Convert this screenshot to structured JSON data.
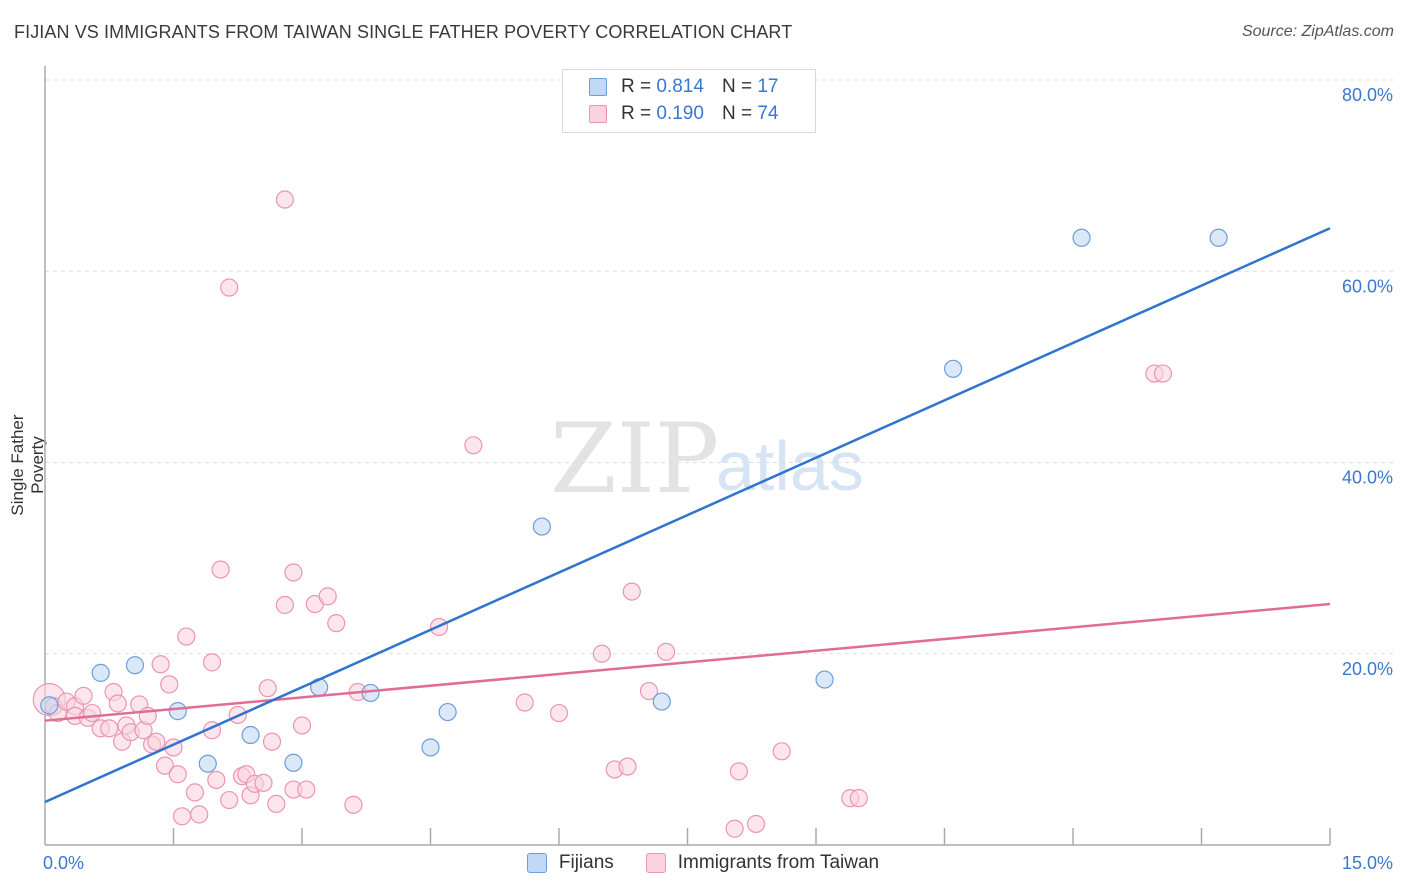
{
  "header": {
    "title": "FIJIAN VS IMMIGRANTS FROM TAIWAN SINGLE FATHER POVERTY CORRELATION CHART",
    "source": "Source: ZipAtlas.com"
  },
  "watermark": {
    "zip": "ZIP",
    "atlas": "atlas"
  },
  "legend": {
    "fijians": {
      "r_label": "R =",
      "r_value": "0.814",
      "n_label": "N =",
      "n_value": "17",
      "color": "#aac8f0"
    },
    "taiwan": {
      "r_label": "R =",
      "r_value": "0.190",
      "n_label": "N =",
      "n_value": "74",
      "color": "#f7b8cc"
    }
  },
  "bottom_legend": {
    "fijians": "Fijians",
    "taiwan": "Immigrants from Taiwan"
  },
  "colors": {
    "fijian_stroke": "#6e9ed9",
    "fijian_fill": "#c3d8f4",
    "fijian_line": "#2f74cf",
    "taiwan_stroke": "#ec95b2",
    "taiwan_fill": "#fad3df",
    "taiwan_line": "#e06d96",
    "tick_label": "#3a78d0",
    "grid": "#dddddd"
  },
  "chart_data": {
    "type": "scatter",
    "title": "FIJIAN VS IMMIGRANTS FROM TAIWAN SINGLE FATHER POVERTY CORRELATION CHART",
    "xlabel": "",
    "ylabel": "Single Father Poverty",
    "xlim": [
      0,
      15
    ],
    "ylim": [
      0,
      80
    ],
    "x_tick_labels": [
      "0.0%",
      "15.0%"
    ],
    "y_ticks": [
      20,
      40,
      60,
      80
    ],
    "y_tick_labels": [
      "20.0%",
      "40.0%",
      "60.0%",
      "80.0%"
    ],
    "grid": true,
    "series": [
      {
        "name": "Fijians",
        "points": [
          {
            "x": 0.05,
            "y": 14.6
          },
          {
            "x": 0.65,
            "y": 18.0
          },
          {
            "x": 1.05,
            "y": 18.8
          },
          {
            "x": 1.55,
            "y": 14.0
          },
          {
            "x": 1.9,
            "y": 8.5
          },
          {
            "x": 2.4,
            "y": 11.5
          },
          {
            "x": 2.9,
            "y": 8.6
          },
          {
            "x": 3.2,
            "y": 16.5
          },
          {
            "x": 3.8,
            "y": 15.9
          },
          {
            "x": 4.5,
            "y": 10.2
          },
          {
            "x": 4.7,
            "y": 13.9
          },
          {
            "x": 5.8,
            "y": 33.3
          },
          {
            "x": 7.2,
            "y": 15.0
          },
          {
            "x": 9.1,
            "y": 17.3
          },
          {
            "x": 10.6,
            "y": 49.8
          },
          {
            "x": 12.1,
            "y": 63.5
          },
          {
            "x": 13.7,
            "y": 63.5
          }
        ],
        "trend": {
          "x": [
            0,
            15
          ],
          "y": [
            4.5,
            64.5
          ]
        },
        "r": 0.814,
        "n": 17
      },
      {
        "name": "Immigrants from Taiwan",
        "points": [
          {
            "x": 0.05,
            "y": 15.2
          },
          {
            "x": 0.1,
            "y": 14.5
          },
          {
            "x": 0.15,
            "y": 13.8
          },
          {
            "x": 0.25,
            "y": 15.0
          },
          {
            "x": 0.35,
            "y": 14.5
          },
          {
            "x": 0.35,
            "y": 13.5
          },
          {
            "x": 0.45,
            "y": 15.6
          },
          {
            "x": 0.5,
            "y": 13.3
          },
          {
            "x": 0.55,
            "y": 13.8
          },
          {
            "x": 0.65,
            "y": 12.2
          },
          {
            "x": 0.75,
            "y": 12.2
          },
          {
            "x": 0.8,
            "y": 16.0
          },
          {
            "x": 0.85,
            "y": 14.8
          },
          {
            "x": 0.9,
            "y": 10.8
          },
          {
            "x": 0.95,
            "y": 12.5
          },
          {
            "x": 1.0,
            "y": 11.8
          },
          {
            "x": 1.1,
            "y": 14.7
          },
          {
            "x": 1.15,
            "y": 12.0
          },
          {
            "x": 1.2,
            "y": 13.5
          },
          {
            "x": 1.25,
            "y": 10.5
          },
          {
            "x": 1.3,
            "y": 10.8
          },
          {
            "x": 1.35,
            "y": 18.9
          },
          {
            "x": 1.4,
            "y": 8.3
          },
          {
            "x": 1.45,
            "y": 16.8
          },
          {
            "x": 1.5,
            "y": 10.2
          },
          {
            "x": 1.55,
            "y": 7.4
          },
          {
            "x": 1.6,
            "y": 3.0
          },
          {
            "x": 1.65,
            "y": 21.8
          },
          {
            "x": 1.75,
            "y": 5.5
          },
          {
            "x": 1.8,
            "y": 3.2
          },
          {
            "x": 1.95,
            "y": 19.1
          },
          {
            "x": 1.95,
            "y": 12.0
          },
          {
            "x": 2.0,
            "y": 6.8
          },
          {
            "x": 2.05,
            "y": 28.8
          },
          {
            "x": 2.15,
            "y": 4.7
          },
          {
            "x": 2.15,
            "y": 58.3
          },
          {
            "x": 2.25,
            "y": 13.6
          },
          {
            "x": 2.3,
            "y": 7.2
          },
          {
            "x": 2.35,
            "y": 7.4
          },
          {
            "x": 2.4,
            "y": 5.2
          },
          {
            "x": 2.45,
            "y": 6.4
          },
          {
            "x": 2.55,
            "y": 6.5
          },
          {
            "x": 2.6,
            "y": 16.4
          },
          {
            "x": 2.65,
            "y": 10.8
          },
          {
            "x": 2.7,
            "y": 4.3
          },
          {
            "x": 2.8,
            "y": 25.1
          },
          {
            "x": 2.8,
            "y": 67.5
          },
          {
            "x": 2.9,
            "y": 28.5
          },
          {
            "x": 2.9,
            "y": 5.8
          },
          {
            "x": 3.0,
            "y": 12.5
          },
          {
            "x": 3.05,
            "y": 5.8
          },
          {
            "x": 3.15,
            "y": 25.2
          },
          {
            "x": 3.3,
            "y": 26.0
          },
          {
            "x": 3.4,
            "y": 23.2
          },
          {
            "x": 3.6,
            "y": 4.2
          },
          {
            "x": 3.65,
            "y": 16.0
          },
          {
            "x": 4.6,
            "y": 22.8
          },
          {
            "x": 5.0,
            "y": 41.8
          },
          {
            "x": 5.6,
            "y": 14.9
          },
          {
            "x": 6.0,
            "y": 13.8
          },
          {
            "x": 6.5,
            "y": 20.0
          },
          {
            "x": 6.65,
            "y": 7.9
          },
          {
            "x": 6.8,
            "y": 8.2
          },
          {
            "x": 6.85,
            "y": 26.5
          },
          {
            "x": 7.05,
            "y": 16.1
          },
          {
            "x": 7.25,
            "y": 20.2
          },
          {
            "x": 8.05,
            "y": 1.7
          },
          {
            "x": 8.1,
            "y": 7.7
          },
          {
            "x": 8.3,
            "y": 2.2
          },
          {
            "x": 8.6,
            "y": 9.8
          },
          {
            "x": 9.4,
            "y": 4.9
          },
          {
            "x": 9.5,
            "y": 4.9
          },
          {
            "x": 12.95,
            "y": 49.3
          },
          {
            "x": 13.05,
            "y": 49.3
          }
        ],
        "trend": {
          "x": [
            0,
            15
          ],
          "y": [
            13.0,
            25.2
          ]
        },
        "r": 0.19,
        "n": 74
      }
    ]
  }
}
